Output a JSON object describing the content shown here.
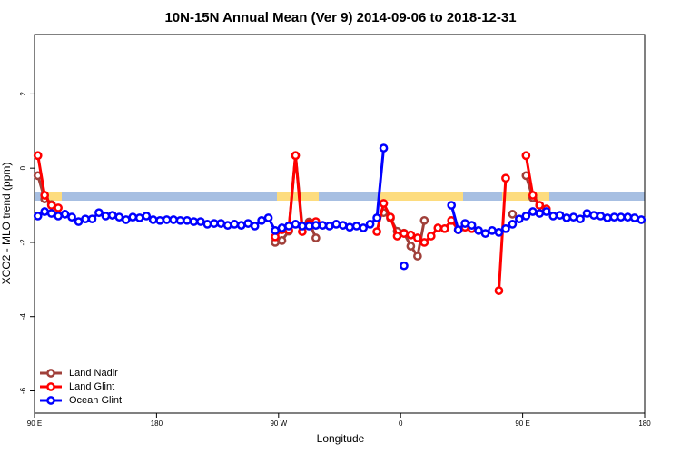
{
  "chart_data": {
    "type": "line",
    "title": "10N-15N Annual Mean (Ver 9)   2014-09-06 to 2018-12-31",
    "xlabel": "Longitude",
    "ylabel": "XCO2 - MLO trend (ppm)",
    "xlim": [
      90,
      540
    ],
    "xticks": [
      {
        "value": 90,
        "label": "90 E"
      },
      {
        "value": 180,
        "label": "180"
      },
      {
        "value": 270,
        "label": "90 W"
      },
      {
        "value": 360,
        "label": "0"
      },
      {
        "value": 450,
        "label": "90 E"
      },
      {
        "value": 540,
        "label": "180"
      }
    ],
    "ylim": [
      -6.6,
      3.6
    ],
    "yticks": [
      -6,
      -4,
      -2,
      0,
      2
    ],
    "legend": "bottom-left",
    "x": [
      92.5,
      97.5,
      102.5,
      107.5,
      112.5,
      117.5,
      122.5,
      127.5,
      132.5,
      137.5,
      142.5,
      147.5,
      152.5,
      157.5,
      162.5,
      167.5,
      172.5,
      177.5,
      182.5,
      187.5,
      192.5,
      197.5,
      202.5,
      207.5,
      212.5,
      217.5,
      222.5,
      227.5,
      232.5,
      237.5,
      242.5,
      247.5,
      252.5,
      257.5,
      262.5,
      267.5,
      272.5,
      277.5,
      282.5,
      287.5,
      292.5,
      297.5,
      302.5,
      307.5,
      312.5,
      317.5,
      322.5,
      327.5,
      332.5,
      337.5,
      342.5,
      347.5,
      352.5,
      357.5,
      362.5,
      367.5,
      372.5,
      377.5,
      382.5,
      387.5,
      392.5,
      397.5,
      402.5,
      407.5,
      412.5,
      417.5,
      422.5,
      427.5,
      432.5,
      437.5,
      442.5,
      447.5,
      452.5,
      457.5,
      462.5,
      467.5,
      472.5,
      477.5,
      482.5,
      487.5,
      492.5,
      497.5,
      502.5,
      507.5,
      512.5,
      517.5,
      522.5,
      527.5,
      532.5,
      537.5
    ],
    "series": [
      {
        "name": "Land Nadir",
        "color": "#a0403a",
        "values": [
          -0.2,
          -0.83,
          -0.98,
          null,
          null,
          null,
          null,
          null,
          null,
          null,
          null,
          null,
          null,
          null,
          null,
          null,
          null,
          null,
          null,
          null,
          null,
          null,
          null,
          null,
          null,
          null,
          null,
          null,
          null,
          null,
          null,
          null,
          null,
          null,
          null,
          -2.0,
          -1.95,
          -1.7,
          0.34,
          -1.57,
          -1.45,
          -1.88,
          null,
          null,
          null,
          null,
          null,
          null,
          null,
          null,
          null,
          -1.2,
          -1.35,
          -1.7,
          -1.75,
          -2.1,
          -2.37,
          -1.41,
          null,
          null,
          null,
          null,
          null,
          null,
          null,
          null,
          null,
          null,
          null,
          null,
          -1.24,
          null,
          -0.2,
          -0.8,
          -1.0,
          null,
          null,
          null,
          null,
          null,
          null,
          null,
          null,
          null,
          null,
          null,
          null,
          null,
          null,
          null
        ]
      },
      {
        "name": "Land Glint",
        "color": "#ff0000",
        "values": [
          0.34,
          -0.73,
          -1.0,
          -1.07,
          null,
          null,
          null,
          null,
          null,
          null,
          null,
          null,
          null,
          null,
          null,
          null,
          null,
          null,
          null,
          null,
          null,
          null,
          null,
          null,
          null,
          null,
          null,
          null,
          null,
          null,
          null,
          null,
          null,
          null,
          null,
          -1.85,
          -1.66,
          -1.66,
          0.34,
          -1.71,
          -1.5,
          -1.44,
          null,
          null,
          null,
          null,
          null,
          null,
          null,
          null,
          -1.71,
          -0.95,
          -1.32,
          -1.83,
          -1.76,
          -1.8,
          -1.88,
          -2.0,
          -1.83,
          -1.61,
          -1.63,
          -1.41,
          -1.66,
          -1.59,
          -1.63,
          null,
          null,
          null,
          -3.3,
          -0.27,
          null,
          null,
          0.34,
          -0.73,
          -1.0,
          -1.1,
          null,
          null,
          null,
          null,
          null,
          null,
          null,
          null,
          null,
          null,
          null,
          null,
          null,
          null
        ]
      },
      {
        "name": "Ocean Glint",
        "color": "#0000ff",
        "values": [
          -1.29,
          -1.17,
          -1.22,
          -1.29,
          -1.24,
          -1.32,
          -1.44,
          -1.37,
          -1.37,
          -1.2,
          -1.29,
          -1.27,
          -1.32,
          -1.39,
          -1.32,
          -1.34,
          -1.29,
          -1.39,
          -1.41,
          -1.39,
          -1.39,
          -1.41,
          -1.41,
          -1.44,
          -1.44,
          -1.51,
          -1.49,
          -1.49,
          -1.54,
          -1.51,
          -1.54,
          -1.49,
          -1.56,
          -1.41,
          -1.34,
          -1.68,
          -1.61,
          -1.56,
          -1.51,
          -1.56,
          -1.56,
          -1.54,
          -1.54,
          -1.56,
          -1.51,
          -1.54,
          -1.59,
          -1.56,
          -1.61,
          -1.51,
          -1.34,
          0.54,
          null,
          null,
          -2.63,
          null,
          null,
          null,
          null,
          null,
          null,
          -1.0,
          -1.66,
          -1.49,
          -1.54,
          -1.68,
          -1.76,
          -1.68,
          -1.73,
          -1.63,
          -1.51,
          -1.37,
          -1.29,
          -1.17,
          -1.22,
          -1.17,
          -1.29,
          -1.27,
          -1.34,
          -1.32,
          -1.37,
          -1.22,
          -1.27,
          -1.29,
          -1.34,
          -1.32,
          -1.32,
          -1.32,
          -1.34,
          -1.39
        ]
      }
    ]
  }
}
